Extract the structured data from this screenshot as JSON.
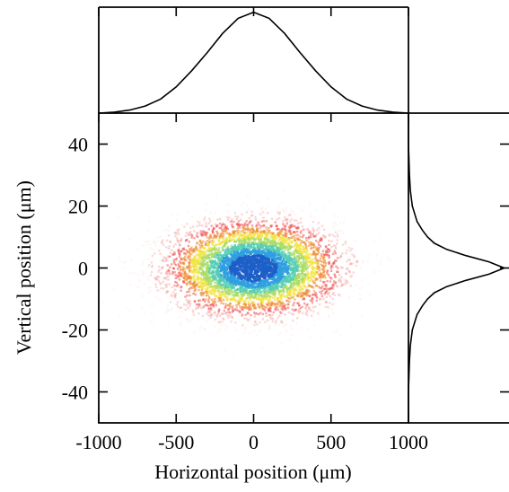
{
  "chart_data": [
    {
      "type": "heatmap",
      "title": "",
      "xlabel": "Horizontal position (μm)",
      "ylabel": "Vertical position (μm)",
      "xlim": [
        -1000,
        1000
      ],
      "ylim": [
        -50,
        50
      ],
      "x_ticks": [
        -1000,
        -500,
        0,
        500,
        1000
      ],
      "y_ticks": [
        40,
        20,
        0,
        -20,
        -40
      ],
      "x_tick_labels": [
        "-1000",
        "-500",
        "0",
        "500",
        "1000"
      ],
      "y_tick_labels": [
        "40",
        "20",
        "0",
        "-20",
        "-40"
      ],
      "distribution": {
        "shape": "2D Gaussian",
        "center": [
          0,
          0
        ],
        "sigma_x": 270,
        "sigma_y": 7.5
      },
      "colormap": [
        "#fbe3e3",
        "#f5a0a0",
        "#ef4a4a",
        "#ef8c34",
        "#f2e23c",
        "#a8dc64",
        "#56cdb4",
        "#2f9fe0",
        "#1d5fc8"
      ],
      "grid": false
    },
    {
      "type": "line",
      "title": "",
      "xlabel": "",
      "ylabel": "",
      "xlim": [
        -1000,
        1000
      ],
      "ylim": [
        0,
        1.05
      ],
      "x": [
        -1000,
        -900,
        -800,
        -700,
        -600,
        -500,
        -400,
        -300,
        -200,
        -100,
        0,
        100,
        200,
        300,
        400,
        500,
        600,
        700,
        800,
        900,
        1000
      ],
      "y": [
        0.0,
        0.01,
        0.03,
        0.07,
        0.14,
        0.26,
        0.42,
        0.6,
        0.79,
        0.94,
        1.0,
        0.94,
        0.79,
        0.6,
        0.42,
        0.26,
        0.14,
        0.07,
        0.03,
        0.01,
        0.0
      ],
      "series": [
        {
          "name": "",
          "values": [
            0.0,
            0.01,
            0.03,
            0.07,
            0.14,
            0.26,
            0.42,
            0.6,
            0.79,
            0.94,
            1.0,
            0.94,
            0.79,
            0.6,
            0.42,
            0.26,
            0.14,
            0.07,
            0.03,
            0.01,
            0.0
          ]
        }
      ]
    },
    {
      "type": "line",
      "title": "",
      "xlabel": "",
      "ylabel": "",
      "orientation": "vertical",
      "ylim": [
        -50,
        50
      ],
      "xlim": [
        0,
        1.05
      ],
      "y": [
        50,
        40,
        30,
        25,
        20,
        15,
        12,
        10,
        8,
        6,
        4,
        2,
        0,
        -2,
        -4,
        -6,
        -8,
        -10,
        -12,
        -15,
        -20,
        -25,
        -30,
        -40,
        -50
      ],
      "x": [
        0.0,
        0.0,
        0.01,
        0.02,
        0.04,
        0.09,
        0.15,
        0.2,
        0.27,
        0.4,
        0.6,
        0.84,
        1.0,
        0.84,
        0.6,
        0.4,
        0.27,
        0.2,
        0.15,
        0.09,
        0.04,
        0.02,
        0.01,
        0.0,
        0.0
      ],
      "series": [
        {
          "name": "",
          "values": [
            0.0,
            0.0,
            0.01,
            0.02,
            0.04,
            0.09,
            0.15,
            0.2,
            0.27,
            0.4,
            0.6,
            0.84,
            1.0,
            0.84,
            0.6,
            0.4,
            0.27,
            0.2,
            0.15,
            0.09,
            0.04,
            0.02,
            0.01,
            0.0,
            0.0
          ]
        }
      ]
    }
  ]
}
